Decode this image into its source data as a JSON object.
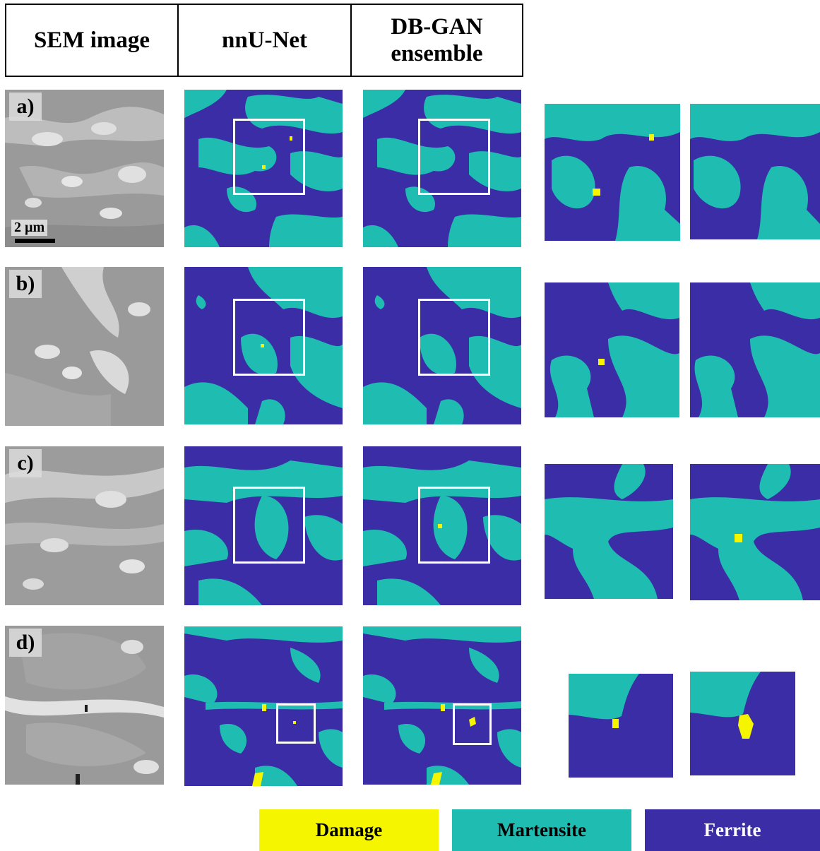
{
  "header": {
    "col_sem": "SEM image",
    "col_nnunet": "nnU-Net",
    "col_dbgan": "DB-GAN\nensemble"
  },
  "rows": [
    {
      "label": "a)"
    },
    {
      "label": "b)"
    },
    {
      "label": "c)"
    },
    {
      "label": "d)"
    }
  ],
  "scale_bar": {
    "label": "2 µm"
  },
  "legend": {
    "damage": "Damage",
    "martensite": "Martensite",
    "ferrite": "Ferrite"
  },
  "colors": {
    "damage": "#f5f500",
    "martensite": "#1fbcb1",
    "ferrite": "#3b2da6",
    "sem_base": "#9a9a9a"
  }
}
